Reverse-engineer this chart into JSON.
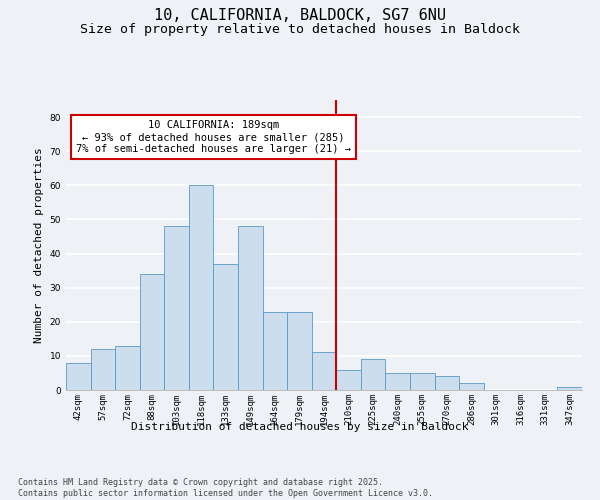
{
  "title": "10, CALIFORNIA, BALDOCK, SG7 6NU",
  "subtitle": "Size of property relative to detached houses in Baldock",
  "xlabel": "Distribution of detached houses by size in Baldock",
  "ylabel": "Number of detached properties",
  "bins": [
    "42sqm",
    "57sqm",
    "72sqm",
    "88sqm",
    "103sqm",
    "118sqm",
    "133sqm",
    "149sqm",
    "164sqm",
    "179sqm",
    "194sqm",
    "210sqm",
    "225sqm",
    "240sqm",
    "255sqm",
    "270sqm",
    "286sqm",
    "301sqm",
    "316sqm",
    "331sqm",
    "347sqm"
  ],
  "values": [
    8,
    12,
    13,
    34,
    48,
    60,
    37,
    48,
    23,
    23,
    11,
    6,
    9,
    5,
    5,
    4,
    2,
    0,
    0,
    0,
    1
  ],
  "bar_color": "#ccdded",
  "bar_edge_color": "#5a9ac5",
  "background_color": "#eef2f7",
  "grid_color": "#ffffff",
  "annotation_text": "10 CALIFORNIA: 189sqm\n← 93% of detached houses are smaller (285)\n7% of semi-detached houses are larger (21) →",
  "annotation_box_color": "#ffffff",
  "annotation_box_edge": "#cc0000",
  "vertical_line_x": 10.5,
  "vertical_line_color": "#cc0000",
  "ylim": [
    0,
    85
  ],
  "yticks": [
    0,
    10,
    20,
    30,
    40,
    50,
    60,
    70,
    80
  ],
  "footnote": "Contains HM Land Registry data © Crown copyright and database right 2025.\nContains public sector information licensed under the Open Government Licence v3.0.",
  "title_fontsize": 11,
  "subtitle_fontsize": 9.5,
  "axis_label_fontsize": 8,
  "tick_fontsize": 6.5,
  "annotation_fontsize": 7.5,
  "footnote_fontsize": 6
}
